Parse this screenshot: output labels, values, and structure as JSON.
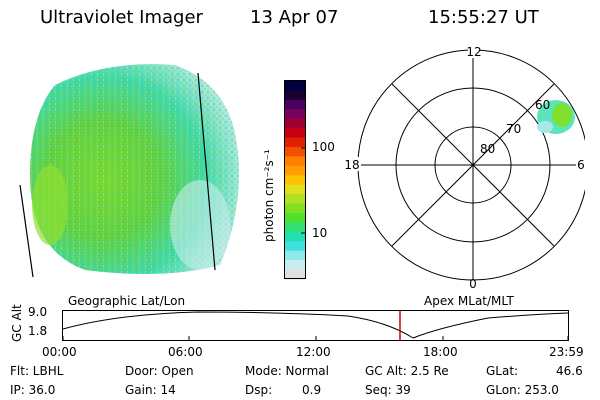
{
  "header": {
    "title": "Ultraviolet Imager",
    "date": "13 Apr 07",
    "time": "15:55:27 UT"
  },
  "colorbar": {
    "unit_label": "photon cm⁻²s⁻¹",
    "tick_labels": [
      "100",
      "10"
    ],
    "colors": [
      "#000040",
      "#1a0030",
      "#4a0060",
      "#7a0060",
      "#a00030",
      "#c80010",
      "#e02000",
      "#f05000",
      "#ff8000",
      "#ffa000",
      "#ffc000",
      "#e0e020",
      "#b0e020",
      "#80e020",
      "#50e030",
      "#30e070",
      "#20e0b0",
      "#40e0e0",
      "#90e8e8",
      "#c8ecec",
      "#e0e0e0"
    ]
  },
  "polar": {
    "mlt_labels": {
      "top": "12",
      "left": "18",
      "right": "6",
      "bottom": "0"
    },
    "lat_labels": [
      "60",
      "70",
      "80"
    ]
  },
  "timeline": {
    "y_axis_label": "GC Alt",
    "y_ticks": [
      "9.0",
      "1.8"
    ],
    "left_caption": "Geographic Lat/Lon",
    "right_caption": "Apex MLat/MLT",
    "x_ticks": [
      "00:00",
      "06:00",
      "12:00",
      "18:00",
      "23:59"
    ],
    "current_marker_color": "#cc0000"
  },
  "info": {
    "filter_label": "Flt: LBHL",
    "door_label": "Door: Open",
    "mode_label": "Mode: Normal",
    "gcalt_label": "GC Alt: 2.5 Re",
    "glat_label": "GLat:",
    "glat_value": "46.6",
    "ip_label": "IP: 36.0",
    "gain_label": "Gain: 14",
    "dsp_label": "Dsp:",
    "dsp_value": "0.9",
    "seq_label": "Seq: 39",
    "glon_label": "GLon: 253.0"
  }
}
